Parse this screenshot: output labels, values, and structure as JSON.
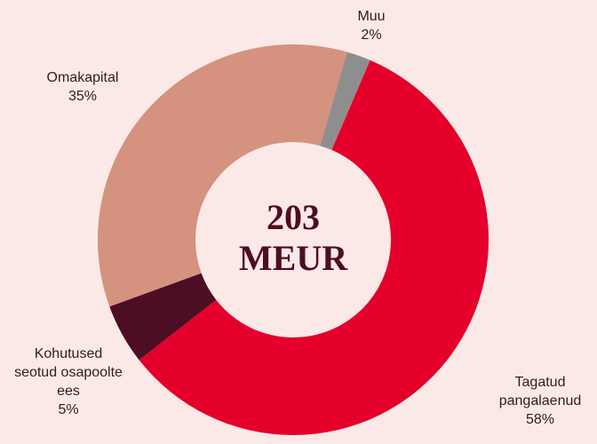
{
  "chart_data": {
    "type": "donut",
    "center_label": "203 MEUR",
    "categories": [
      "Muu",
      "Tagatud pangalaenud",
      "Kohutused seotud osapoolte ees",
      "Omakapital"
    ],
    "values": [
      2,
      58,
      5,
      35
    ],
    "value_labels": [
      "2%",
      "58%",
      "5%",
      "35%"
    ],
    "colors": [
      "#8e8e8e",
      "#e4002b",
      "#4d0d22",
      "#d4927f"
    ]
  }
}
